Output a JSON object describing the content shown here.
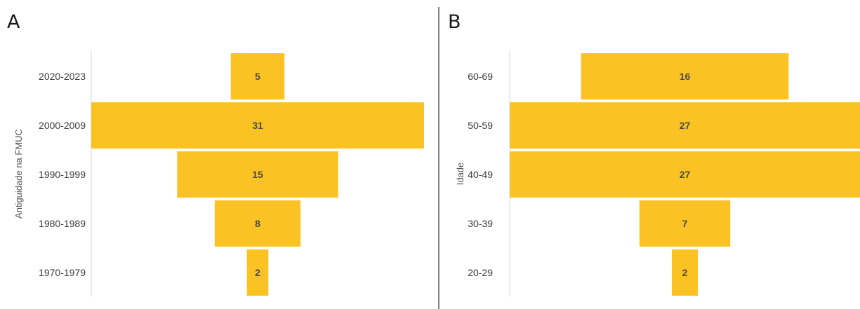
{
  "colors": {
    "bar": "#FBC223",
    "axis_line": "#d9d9d9",
    "divider": "#333333"
  },
  "chart_data": [
    {
      "type": "bar",
      "orientation": "horizontal-centered",
      "panel_label": "A",
      "ylabel": "Antiguidade na FMUC",
      "categories": [
        "2020-2023",
        "2000-2009",
        "1990-1999",
        "1980-1989",
        "1970-1979"
      ],
      "values": [
        5,
        31,
        15,
        8,
        2
      ],
      "data_labels": [
        "5",
        "31",
        "15",
        "8",
        "2"
      ],
      "xlim": [
        0,
        31
      ],
      "grid": false,
      "legend": "none"
    },
    {
      "type": "bar",
      "orientation": "horizontal-centered",
      "panel_label": "B",
      "ylabel": "Idade",
      "categories": [
        "60-69",
        "50-59",
        "40-49",
        "30-39",
        "20-29"
      ],
      "values": [
        16,
        27,
        27,
        7,
        2
      ],
      "data_labels": [
        "16",
        "27",
        "27",
        "7",
        "2"
      ],
      "xlim": [
        0,
        27
      ],
      "grid": false,
      "legend": "none"
    }
  ]
}
